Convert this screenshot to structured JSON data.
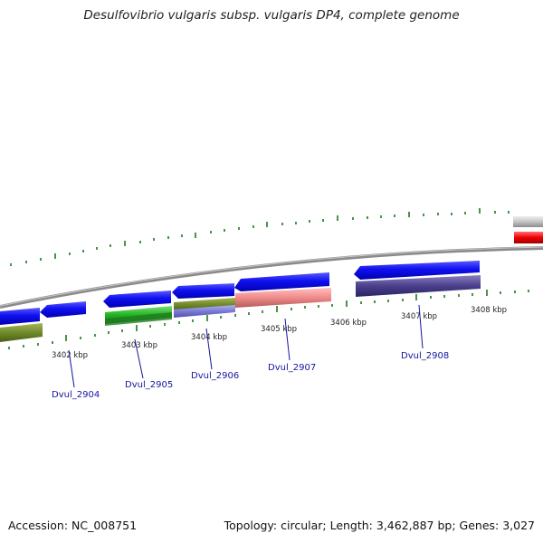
{
  "title": "Desulfovibrio vulgaris subsp. vulgaris DP4, complete genome",
  "footer": {
    "accession": "Accession: NC_008751",
    "summary": "Topology: circular; Length: 3,462,887 bp; Genes: 3,027"
  },
  "kbp_ticks": [
    "3402 kbp",
    "3403 kbp",
    "3404 kbp",
    "3405 kbp",
    "3406 kbp",
    "3407 kbp",
    "3408 kbp"
  ],
  "gene_labels": [
    "Dvul_2904",
    "Dvul_2905",
    "Dvul_2906",
    "Dvul_2907",
    "Dvul_2908"
  ],
  "colors": {
    "cds_strand": "#0000ee",
    "backbone": "#888888",
    "tick": "#1a7a1a",
    "label": "#1414a0"
  }
}
